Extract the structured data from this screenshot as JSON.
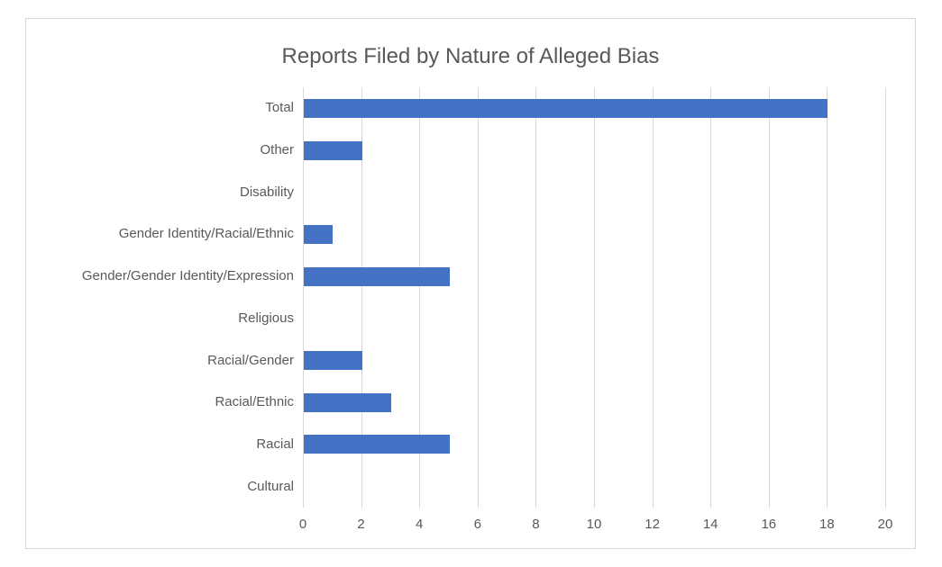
{
  "chart_data": {
    "type": "bar",
    "orientation": "horizontal",
    "title": "Reports Filed by Nature of Alleged Bias",
    "categories": [
      "Total",
      "Other",
      "Disability",
      "Gender Identity/Racial/Ethnic",
      "Gender/Gender Identity/Expression",
      "Religious",
      "Racial/Gender",
      "Racial/Ethnic",
      "Racial",
      "Cultural"
    ],
    "categories_order": "top-to-bottom",
    "values": [
      18,
      2,
      0,
      1,
      5,
      0,
      2,
      3,
      5,
      0
    ],
    "xlabel": "",
    "ylabel": "",
    "xlim": [
      0,
      20
    ],
    "x_ticks": [
      0,
      2,
      4,
      6,
      8,
      10,
      12,
      14,
      16,
      18,
      20
    ],
    "grid": "vertical-gridlines-on",
    "legend": "none",
    "colors": {
      "bar_fill": "#4472C4",
      "gridline": "#D9D9D9",
      "text": "#595959",
      "chart_border": "#D6D6D6",
      "background": "#FFFFFF"
    }
  }
}
